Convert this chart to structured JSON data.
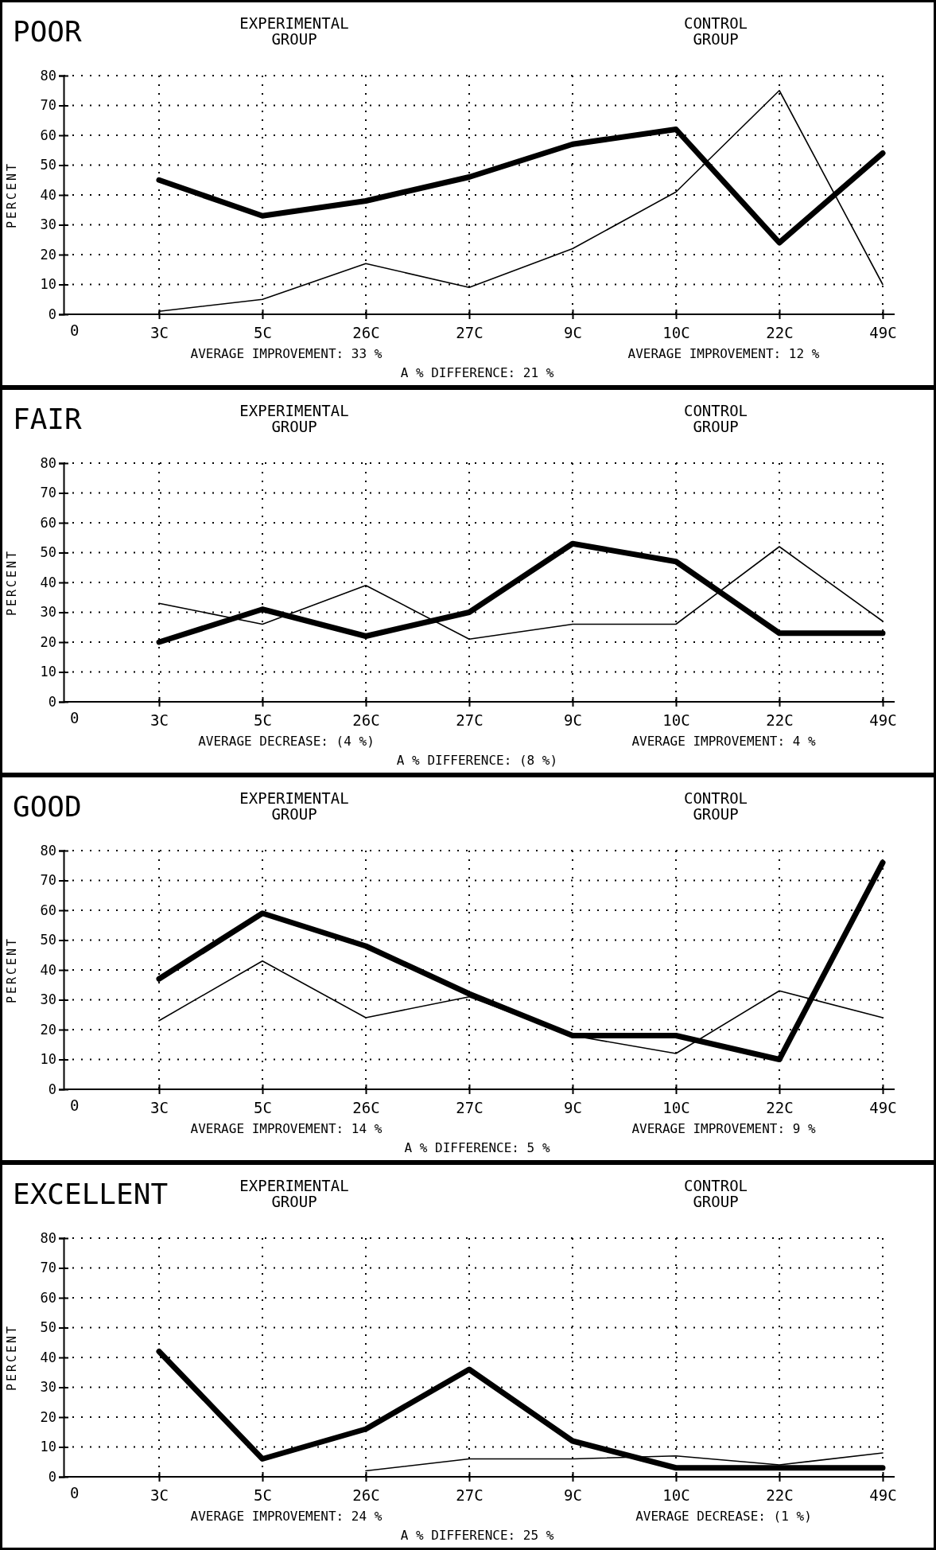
{
  "chart_data": [
    {
      "type": "line",
      "title": "POOR",
      "ylabel": "PERCENT",
      "categories": [
        "3C",
        "5C",
        "26C",
        "27C",
        "9C",
        "10C",
        "22C",
        "49C"
      ],
      "ylim": [
        0,
        80
      ],
      "yticks": [
        0,
        10,
        20,
        30,
        40,
        50,
        60,
        70,
        80
      ],
      "grid": true,
      "series": [
        {
          "color": "#000000",
          "values": [
            45,
            33,
            38,
            46,
            57,
            62,
            24,
            54
          ]
        },
        {
          "color": "#000000",
          "values": [
            1,
            5,
            17,
            9,
            22,
            41,
            75,
            10
          ]
        }
      ],
      "annotations": [
        "EXPERIMENTAL\nGROUP",
        "CONTROL\nGROUP",
        "AVERAGE IMPROVEMENT: 33 %",
        "AVERAGE IMPROVEMENT: 12 %",
        "A % DIFFERENCE: 21 %",
        "0"
      ]
    },
    {
      "type": "line",
      "title": "FAIR",
      "ylabel": "PERCENT",
      "categories": [
        "3C",
        "5C",
        "26C",
        "27C",
        "9C",
        "10C",
        "22C",
        "49C"
      ],
      "ylim": [
        0,
        80
      ],
      "yticks": [
        0,
        10,
        20,
        30,
        40,
        50,
        60,
        70,
        80
      ],
      "grid": true,
      "series": [
        {
          "color": "#000000",
          "values": [
            20,
            31,
            22,
            30,
            53,
            47,
            23,
            23
          ]
        },
        {
          "color": "#000000",
          "values": [
            33,
            26,
            39,
            21,
            26,
            26,
            52,
            27
          ]
        }
      ],
      "annotations": [
        "EXPERIMENTAL\nGROUP",
        "CONTROL\nGROUP",
        "AVERAGE DECREASE: (4 %)",
        "AVERAGE IMPROVEMENT: 4 %",
        "A % DIFFERENCE: (8 %)",
        "0"
      ]
    },
    {
      "type": "line",
      "title": "GOOD",
      "ylabel": "PERCENT",
      "categories": [
        "3C",
        "5C",
        "26C",
        "27C",
        "9C",
        "10C",
        "22C",
        "49C"
      ],
      "ylim": [
        0,
        80
      ],
      "yticks": [
        0,
        10,
        20,
        30,
        40,
        50,
        60,
        70,
        80
      ],
      "grid": true,
      "series": [
        {
          "color": "#000000",
          "values": [
            37,
            59,
            48,
            32,
            18,
            18,
            10,
            76
          ]
        },
        {
          "color": "#000000",
          "values": [
            23,
            43,
            24,
            31,
            18,
            12,
            33,
            24
          ]
        }
      ],
      "annotations": [
        "EXPERIMENTAL\nGROUP",
        "CONTROL\nGROUP",
        "AVERAGE IMPROVEMENT: 14 %",
        "AVERAGE IMPROVEMENT: 9 %",
        "A % DIFFERENCE: 5 %",
        "0"
      ]
    },
    {
      "type": "line",
      "title": "EXCELLENT",
      "ylabel": "PERCENT",
      "categories": [
        "3C",
        "5C",
        "26C",
        "27C",
        "9C",
        "10C",
        "22C",
        "49C"
      ],
      "ylim": [
        0,
        80
      ],
      "yticks": [
        0,
        10,
        20,
        30,
        40,
        50,
        60,
        70,
        80
      ],
      "grid": true,
      "series": [
        {
          "color": "#000000",
          "values": [
            42,
            6,
            16,
            36,
            12,
            3,
            3,
            3
          ]
        },
        {
          "color": "#000000",
          "values": [
            null,
            null,
            2,
            6,
            6,
            7,
            4,
            8
          ]
        }
      ],
      "annotations": [
        "EXPERIMENTAL\nGROUP",
        "CONTROL\nGROUP",
        "AVERAGE IMPROVEMENT: 24 %",
        "AVERAGE DECREASE: (1 %)",
        "A % DIFFERENCE: 25 %",
        "0"
      ]
    }
  ]
}
